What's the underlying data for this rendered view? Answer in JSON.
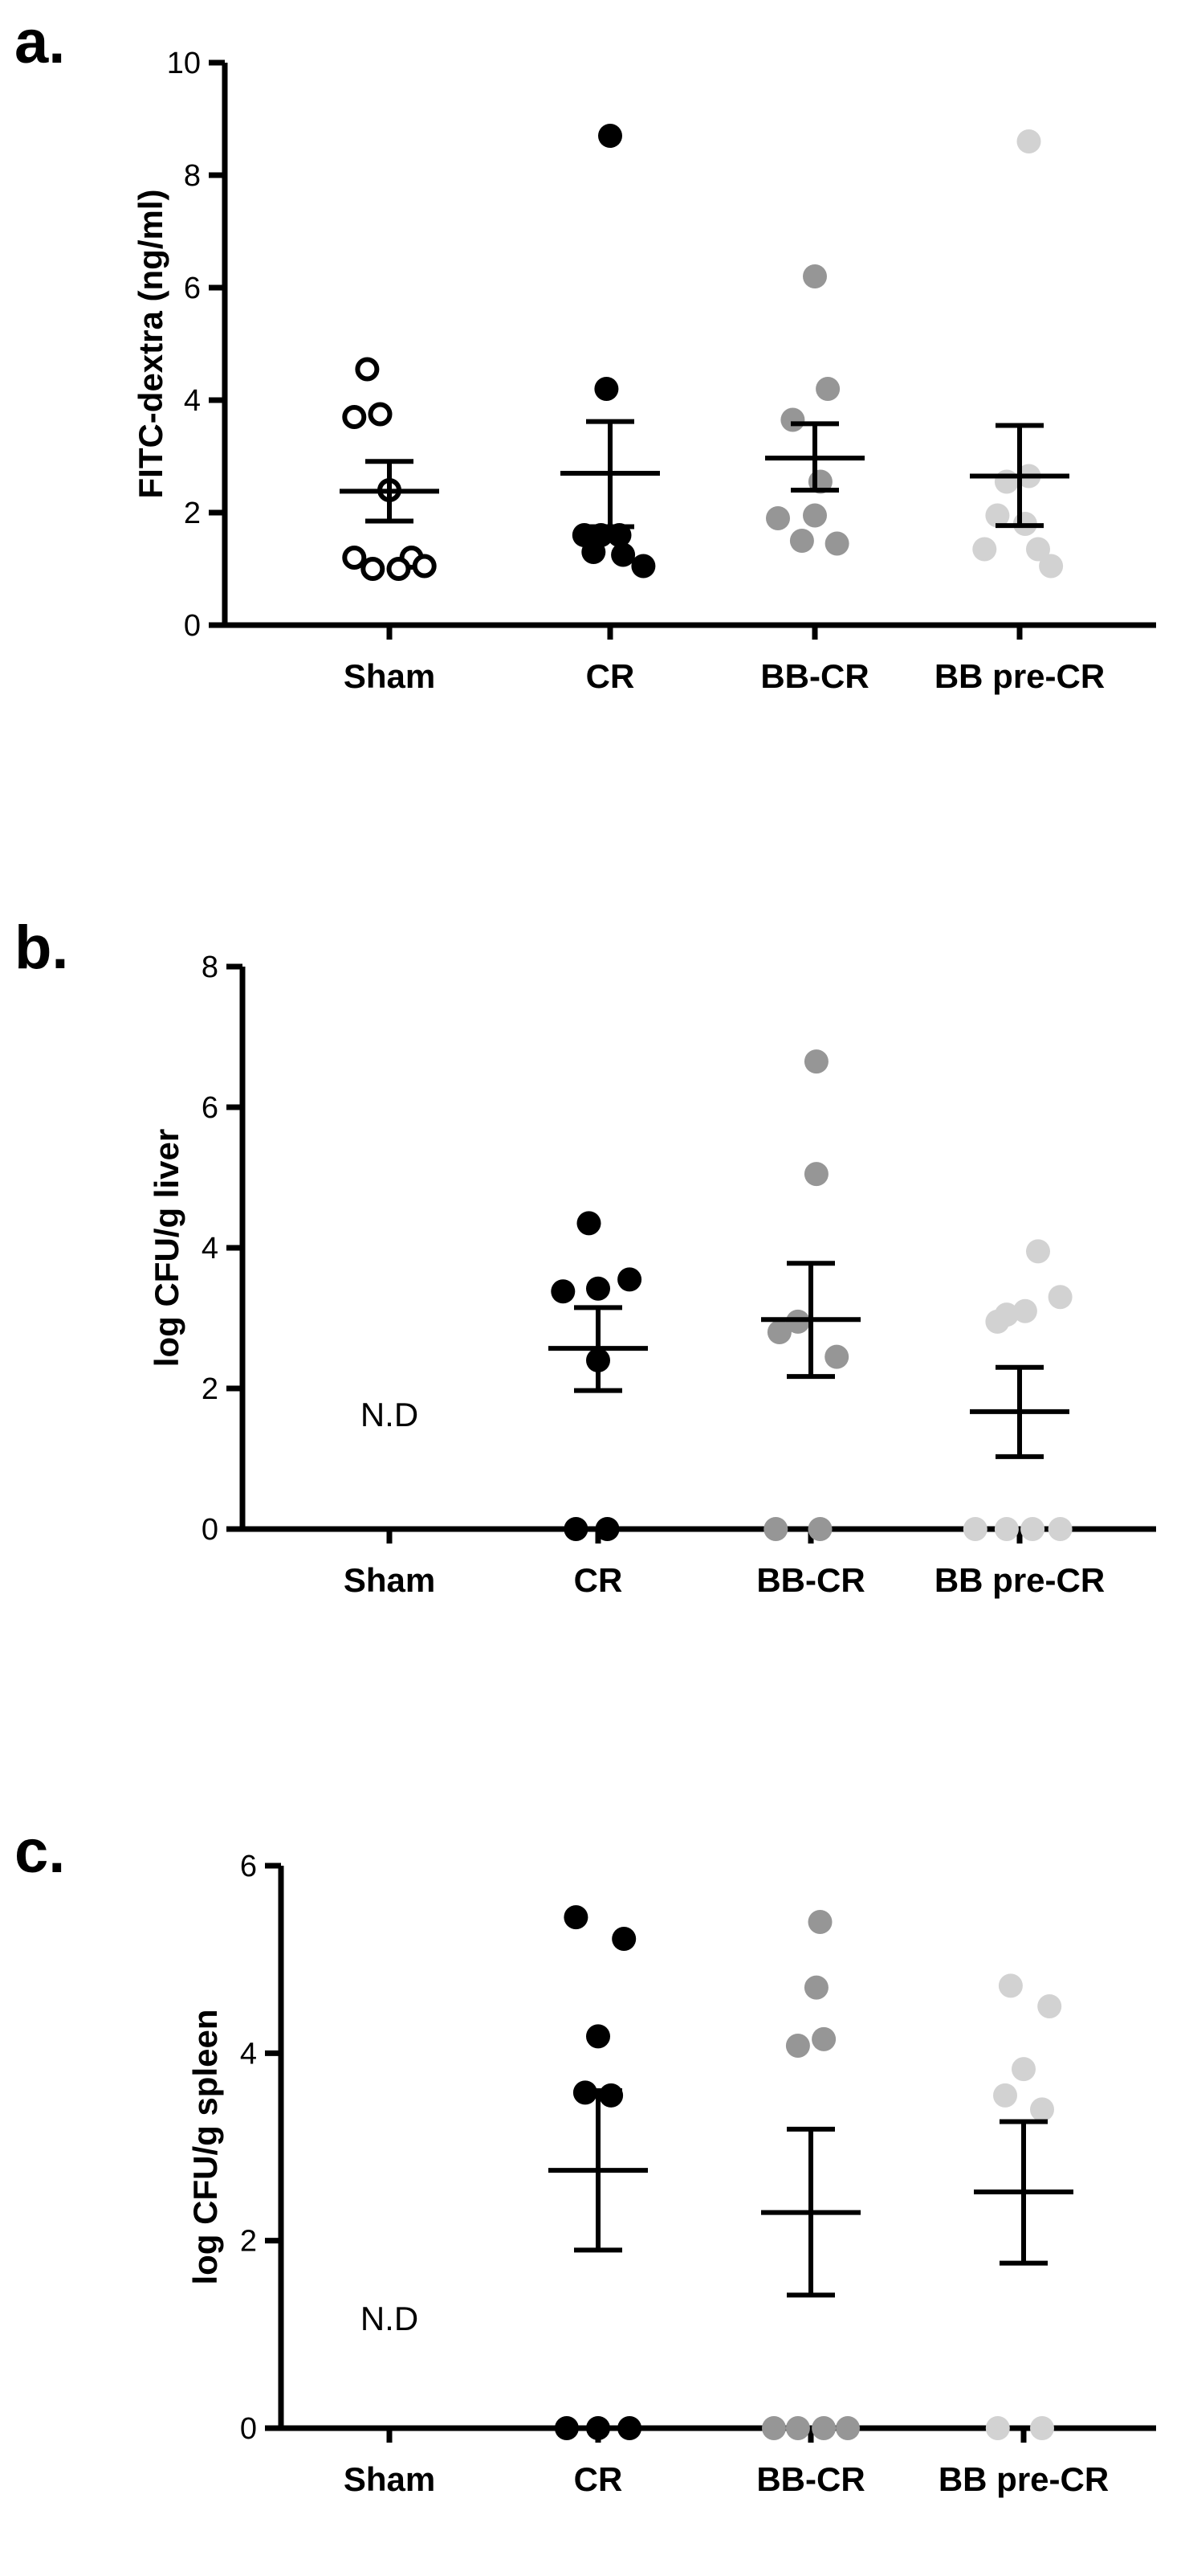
{
  "chart_data": [
    {
      "type": "scatter",
      "panel_label": "a.",
      "ylabel": "FITC-dextra  (ng/ml)",
      "ylim": [
        0,
        10
      ],
      "yticks": [
        "0",
        "2",
        "4",
        "6",
        "8",
        "10"
      ],
      "categories": [
        "Sham",
        "CR",
        "BB-CR",
        "BB pre-CR"
      ],
      "annotations": [],
      "groups": [
        {
          "category": "Sham",
          "color": "#000000",
          "marker": "open-circle",
          "points": [
            [
              -0.12,
              4.55
            ],
            [
              -0.19,
              3.7
            ],
            [
              -0.05,
              3.75
            ],
            [
              0.0,
              2.4
            ],
            [
              -0.19,
              1.2
            ],
            [
              0.12,
              1.2
            ],
            [
              -0.09,
              1.0
            ],
            [
              0.05,
              1.0
            ],
            [
              0.19,
              1.05
            ]
          ],
          "mean": 2.38,
          "sem_low": 1.85,
          "sem_high": 2.91
        },
        {
          "category": "CR",
          "color": "#000000",
          "marker": "filled-circle",
          "points": [
            [
              0.0,
              8.7
            ],
            [
              -0.02,
              4.2
            ],
            [
              -0.14,
              1.6
            ],
            [
              -0.05,
              1.6
            ],
            [
              0.05,
              1.6
            ],
            [
              -0.09,
              1.3
            ],
            [
              0.07,
              1.25
            ],
            [
              0.18,
              1.05
            ]
          ],
          "mean": 2.7,
          "sem_low": 1.75,
          "sem_high": 3.62
        },
        {
          "category": "BB-CR",
          "color": "#969696",
          "marker": "filled-circle",
          "points": [
            [
              0.0,
              6.2
            ],
            [
              0.07,
              4.2
            ],
            [
              -0.12,
              3.65
            ],
            [
              0.03,
              2.55
            ],
            [
              -0.2,
              1.9
            ],
            [
              0.0,
              1.95
            ],
            [
              -0.07,
              1.5
            ],
            [
              0.12,
              1.45
            ]
          ],
          "mean": 2.97,
          "sem_low": 2.4,
          "sem_high": 3.58
        },
        {
          "category": "BB pre-CR",
          "color": "#d2d2d2",
          "marker": "filled-circle",
          "points": [
            [
              0.05,
              8.6
            ],
            [
              0.05,
              2.65
            ],
            [
              -0.07,
              2.55
            ],
            [
              -0.12,
              1.95
            ],
            [
              0.03,
              1.8
            ],
            [
              -0.19,
              1.35
            ],
            [
              0.1,
              1.35
            ],
            [
              0.17,
              1.05
            ]
          ],
          "mean": 2.65,
          "sem_low": 1.77,
          "sem_high": 3.55
        }
      ]
    },
    {
      "type": "scatter",
      "panel_label": "b.",
      "ylabel": "log CFU/g liver",
      "ylim": [
        0,
        8
      ],
      "yticks": [
        "0",
        "2",
        "4",
        "6",
        "8"
      ],
      "categories": [
        "Sham",
        "CR",
        "BB-CR",
        "BB pre-CR"
      ],
      "annotations": [
        {
          "text": "N.D",
          "category": "Sham"
        }
      ],
      "groups": [
        {
          "category": "Sham",
          "color": "#000000",
          "marker": "filled-circle",
          "points": [],
          "mean": 0.0,
          "sem_low": 0.0,
          "sem_high": 0.0
        },
        {
          "category": "CR",
          "color": "#000000",
          "marker": "filled-circle",
          "points": [
            [
              -0.05,
              4.35
            ],
            [
              -0.19,
              3.38
            ],
            [
              0.0,
              3.42
            ],
            [
              0.17,
              3.55
            ],
            [
              0.0,
              2.4
            ],
            [
              -0.12,
              0.0
            ],
            [
              0.05,
              0.0
            ]
          ],
          "mean": 2.57,
          "sem_low": 1.97,
          "sem_high": 3.15
        },
        {
          "category": "BB-CR",
          "color": "#969696",
          "marker": "filled-circle",
          "points": [
            [
              0.03,
              6.65
            ],
            [
              0.03,
              5.05
            ],
            [
              -0.17,
              2.8
            ],
            [
              -0.07,
              2.95
            ],
            [
              0.14,
              2.45
            ],
            [
              -0.19,
              0.0
            ],
            [
              0.05,
              0.0
            ]
          ],
          "mean": 2.98,
          "sem_low": 2.17,
          "sem_high": 3.78
        },
        {
          "category": "BB pre-CR",
          "color": "#d2d2d2",
          "marker": "filled-circle",
          "points": [
            [
              0.1,
              3.95
            ],
            [
              -0.07,
              3.05
            ],
            [
              0.03,
              3.1
            ],
            [
              0.22,
              3.3
            ],
            [
              -0.12,
              2.95
            ],
            [
              -0.24,
              0.0
            ],
            [
              -0.07,
              0.0
            ],
            [
              0.07,
              0.0
            ],
            [
              0.22,
              0.0
            ]
          ],
          "mean": 1.67,
          "sem_low": 1.03,
          "sem_high": 2.3
        }
      ]
    },
    {
      "type": "scatter",
      "panel_label": "c.",
      "ylabel": "log CFU/g spleen",
      "ylim": [
        0,
        6
      ],
      "yticks": [
        "0",
        "2",
        "4",
        "6"
      ],
      "categories": [
        "Sham",
        "CR",
        "BB-CR",
        "BB pre-CR"
      ],
      "annotations": [
        {
          "text": "N.D",
          "category": "Sham"
        }
      ],
      "groups": [
        {
          "category": "Sham",
          "color": "#000000",
          "marker": "filled-circle",
          "points": [],
          "mean": 0.0,
          "sem_low": 0.0,
          "sem_high": 0.0
        },
        {
          "category": "CR",
          "color": "#000000",
          "marker": "filled-circle",
          "points": [
            [
              -0.12,
              5.45
            ],
            [
              0.14,
              5.22
            ],
            [
              0.0,
              4.18
            ],
            [
              -0.07,
              3.58
            ],
            [
              0.07,
              3.55
            ],
            [
              -0.17,
              0.0
            ],
            [
              0.0,
              0.0
            ],
            [
              0.17,
              0.0
            ]
          ],
          "mean": 2.75,
          "sem_low": 1.9,
          "sem_high": 3.6
        },
        {
          "category": "BB-CR",
          "color": "#969696",
          "marker": "filled-circle",
          "points": [
            [
              0.05,
              5.4
            ],
            [
              0.03,
              4.7
            ],
            [
              -0.07,
              4.08
            ],
            [
              0.07,
              4.15
            ],
            [
              -0.2,
              0.0
            ],
            [
              -0.07,
              0.0
            ],
            [
              0.07,
              0.0
            ],
            [
              0.2,
              0.0
            ]
          ],
          "mean": 2.3,
          "sem_low": 1.42,
          "sem_high": 3.19
        },
        {
          "category": "BB pre-CR",
          "color": "#d2d2d2",
          "marker": "filled-circle",
          "points": [
            [
              -0.07,
              4.72
            ],
            [
              0.14,
              4.5
            ],
            [
              0.0,
              3.83
            ],
            [
              -0.1,
              3.55
            ],
            [
              0.1,
              3.4
            ],
            [
              -0.14,
              0.0
            ],
            [
              0.1,
              0.0
            ]
          ],
          "mean": 2.52,
          "sem_low": 1.76,
          "sem_high": 3.27
        }
      ]
    }
  ]
}
